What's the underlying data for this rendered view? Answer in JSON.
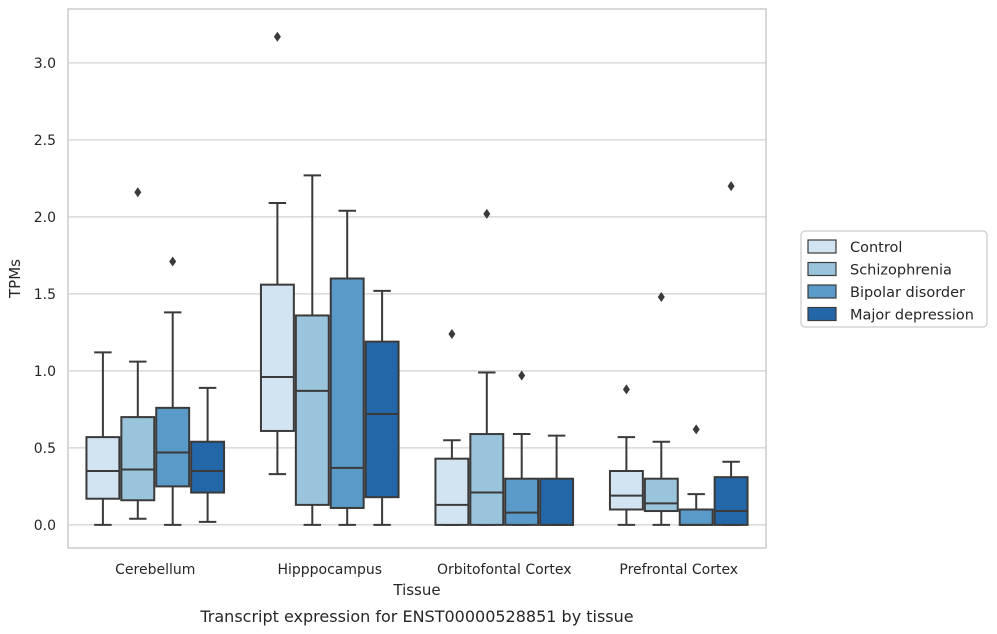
{
  "chart_data": {
    "type": "box",
    "caption": "Transcript expression for ENST00000528851 by tissue",
    "xlabel": "Tissue",
    "ylabel": "TPMs",
    "ylim": [
      -0.15,
      3.35
    ],
    "yticks": [
      0.0,
      0.5,
      1.0,
      1.5,
      2.0,
      2.5,
      3.0
    ],
    "ytick_labels": [
      "0.0",
      "0.5",
      "1.0",
      "1.5",
      "2.0",
      "2.5",
      "3.0"
    ],
    "grid": "horizontal",
    "legend_position": "right",
    "categories": [
      "Cerebellum",
      "Hipppocampus",
      "Orbitofontal Cortex",
      "Prefrontal Cortex"
    ],
    "series": [
      {
        "name": "Control",
        "color": "#d2e3f2",
        "boxes": [
          {
            "whislo": 0.0,
            "q1": 0.17,
            "med": 0.35,
            "q3": 0.57,
            "whishi": 1.12,
            "fliers": []
          },
          {
            "whislo": 0.33,
            "q1": 0.61,
            "med": 0.96,
            "q3": 1.56,
            "whishi": 2.09,
            "fliers": [
              3.17
            ]
          },
          {
            "whislo": 0.0,
            "q1": 0.0,
            "med": 0.13,
            "q3": 0.43,
            "whishi": 0.55,
            "fliers": [
              1.24
            ]
          },
          {
            "whislo": 0.0,
            "q1": 0.1,
            "med": 0.19,
            "q3": 0.35,
            "whishi": 0.57,
            "fliers": [
              0.88
            ]
          }
        ]
      },
      {
        "name": "Schizophrenia",
        "color": "#9ac3dc",
        "boxes": [
          {
            "whislo": 0.04,
            "q1": 0.16,
            "med": 0.36,
            "q3": 0.7,
            "whishi": 1.06,
            "fliers": [
              2.16
            ]
          },
          {
            "whislo": 0.0,
            "q1": 0.13,
            "med": 0.87,
            "q3": 1.36,
            "whishi": 2.27,
            "fliers": []
          },
          {
            "whislo": 0.0,
            "q1": 0.0,
            "med": 0.21,
            "q3": 0.59,
            "whishi": 0.99,
            "fliers": [
              2.02
            ]
          },
          {
            "whislo": 0.0,
            "q1": 0.09,
            "med": 0.14,
            "q3": 0.3,
            "whishi": 0.54,
            "fliers": [
              1.48
            ]
          }
        ]
      },
      {
        "name": "Bipolar disorder",
        "color": "#5a9ac8",
        "boxes": [
          {
            "whislo": 0.0,
            "q1": 0.25,
            "med": 0.47,
            "q3": 0.76,
            "whishi": 1.38,
            "fliers": [
              1.71
            ]
          },
          {
            "whislo": 0.0,
            "q1": 0.11,
            "med": 0.37,
            "q3": 1.6,
            "whishi": 2.04,
            "fliers": []
          },
          {
            "whislo": 0.0,
            "q1": 0.0,
            "med": 0.08,
            "q3": 0.3,
            "whishi": 0.59,
            "fliers": [
              0.97
            ]
          },
          {
            "whislo": 0.0,
            "q1": 0.0,
            "med": 0.0,
            "q3": 0.1,
            "whishi": 0.2,
            "fliers": [
              0.62
            ]
          }
        ]
      },
      {
        "name": "Major depression",
        "color": "#2467a8",
        "boxes": [
          {
            "whislo": 0.02,
            "q1": 0.21,
            "med": 0.35,
            "q3": 0.54,
            "whishi": 0.89,
            "fliers": []
          },
          {
            "whislo": 0.0,
            "q1": 0.18,
            "med": 0.72,
            "q3": 1.19,
            "whishi": 1.52,
            "fliers": []
          },
          {
            "whislo": 0.0,
            "q1": 0.0,
            "med": 0.0,
            "q3": 0.3,
            "whishi": 0.58,
            "fliers": []
          },
          {
            "whislo": 0.0,
            "q1": 0.0,
            "med": 0.09,
            "q3": 0.31,
            "whishi": 0.41,
            "fliers": [
              2.2
            ]
          }
        ]
      }
    ]
  }
}
